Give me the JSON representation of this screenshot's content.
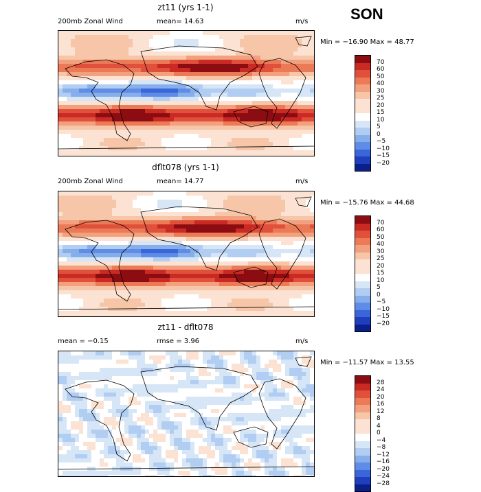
{
  "season": "SON",
  "colors": {
    "pos": [
      "#fbe2d2",
      "#f7c5a8",
      "#f2a07e",
      "#eb7a56",
      "#e0503a",
      "#c92a24",
      "#8c0d11"
    ],
    "neg": [
      "#d6e6f7",
      "#b2cdf2",
      "#86aeeb",
      "#5e8ce6",
      "#3a66dc",
      "#1f3fbd",
      "#0a1f8a"
    ]
  },
  "panels": [
    {
      "title": "zt11 (yrs 1-1)",
      "left_label": "200mb Zonal Wind",
      "mid_label": "mean=  14.63",
      "units": "m/s",
      "minmax": "Min = −16.90 Max =  48.77",
      "chart_data": {
        "type": "heatmap",
        "title": "zt11 (yrs 1-1)",
        "variable": "200mb Zonal Wind",
        "units": "m/s",
        "mean": 14.63,
        "min": -16.9,
        "max": 48.77,
        "levels": [
          "70",
          "60",
          "50",
          "40",
          "30",
          "25",
          "20",
          "15",
          "10",
          "5",
          "0",
          "−5",
          "−10",
          "−15",
          "−20"
        ],
        "contour_step": 5
      }
    },
    {
      "title": "dflt078 (yrs 1-1)",
      "left_label": "200mb Zonal Wind",
      "mid_label": "mean=  14.77",
      "units": "m/s",
      "minmax": "Min = −15.76 Max =  44.68",
      "chart_data": {
        "type": "heatmap",
        "title": "dflt078 (yrs 1-1)",
        "variable": "200mb Zonal Wind",
        "units": "m/s",
        "mean": 14.77,
        "min": -15.76,
        "max": 44.68,
        "levels": [
          "70",
          "60",
          "50",
          "40",
          "30",
          "25",
          "20",
          "15",
          "10",
          "5",
          "0",
          "−5",
          "−10",
          "−15",
          "−20"
        ],
        "contour_step": 5
      }
    },
    {
      "title": "zt11 - dflt078",
      "left_label": "mean =  −0.15",
      "mid_label": "rmse =   3.96",
      "units": "m/s",
      "minmax": "Min = −11.57 Max =  13.55",
      "chart_data": {
        "type": "heatmap",
        "title": "zt11 - dflt078",
        "units": "m/s",
        "mean": -0.15,
        "rmse": 3.96,
        "min": -11.57,
        "max": 13.55,
        "levels": [
          "28",
          "24",
          "20",
          "16",
          "12",
          "8",
          "4",
          "0",
          "−4",
          "−8",
          "−12",
          "−16",
          "−20",
          "−24",
          "−28"
        ],
        "contour_step": 4
      }
    }
  ]
}
